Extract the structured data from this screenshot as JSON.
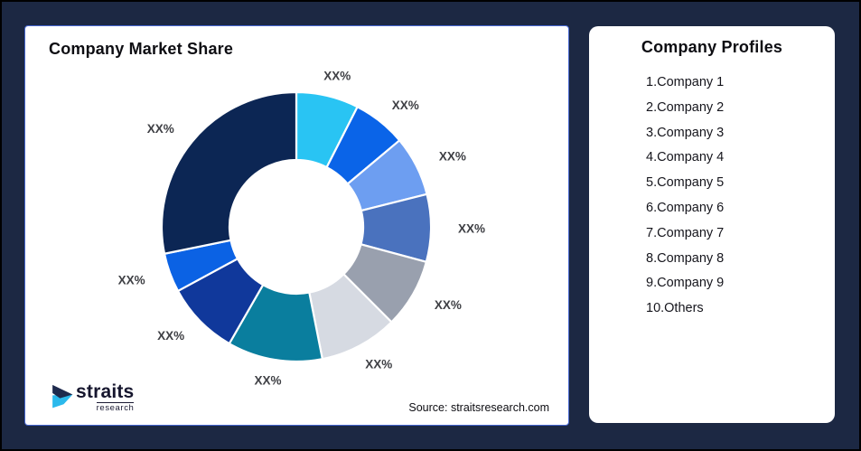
{
  "theme": {
    "background": "#1C2843",
    "outer_border": "#000000",
    "card_background": "#FFFFFF",
    "chart_card_border": "#4566D0",
    "text_primary": "#0D0D12",
    "segment_label_color": "#3F4045"
  },
  "chart_card": {
    "title": "Company Market Share",
    "source": "Source: straitsresearch.com"
  },
  "logo": {
    "name": "straits",
    "sub": "research",
    "navy": "#1E2A4D",
    "cyan": "#2BB9EC"
  },
  "chart_data": {
    "type": "pie",
    "subtype": "donut",
    "title": "Company Market Share",
    "inner_radius_ratio": 0.497,
    "legend_position": "none",
    "value_labels_visible": "XX% placeholders (no numeric values shown)",
    "segments": [
      {
        "name": "Company 1",
        "share_pct": 7.5,
        "label": "XX%",
        "color": "#29C4F3"
      },
      {
        "name": "Company 2",
        "share_pct": 6.4,
        "label": "XX%",
        "color": "#0A64E8"
      },
      {
        "name": "Company 3",
        "share_pct": 7.2,
        "label": "XX%",
        "color": "#6D9EF1"
      },
      {
        "name": "Company 4",
        "share_pct": 8.1,
        "label": "XX%",
        "color": "#4A72BE"
      },
      {
        "name": "Company 5",
        "share_pct": 8.3,
        "label": "XX%",
        "color": "#99A0AE"
      },
      {
        "name": "Company 6",
        "share_pct": 9.4,
        "label": "XX%",
        "color": "#D6DAE2"
      },
      {
        "name": "Company 7",
        "share_pct": 11.4,
        "label": "XX%",
        "color": "#0A7E9E"
      },
      {
        "name": "Company 8",
        "share_pct": 8.8,
        "label": "XX%",
        "color": "#10389B"
      },
      {
        "name": "Company 9",
        "share_pct": 4.7,
        "label": "XX%",
        "color": "#0B62E4"
      },
      {
        "name": "Others",
        "share_pct": 28.2,
        "label": "XX%",
        "color": "#0C2654"
      }
    ]
  },
  "profiles": {
    "title": "Company Profiles",
    "items": [
      "1.Company 1",
      "2.Company 2",
      "3.Company 3",
      "4.Company 4",
      "5.Company 5",
      "6.Company 6",
      "7.Company 7",
      "8.Company 8",
      "9.Company 9",
      "10.Others"
    ]
  }
}
